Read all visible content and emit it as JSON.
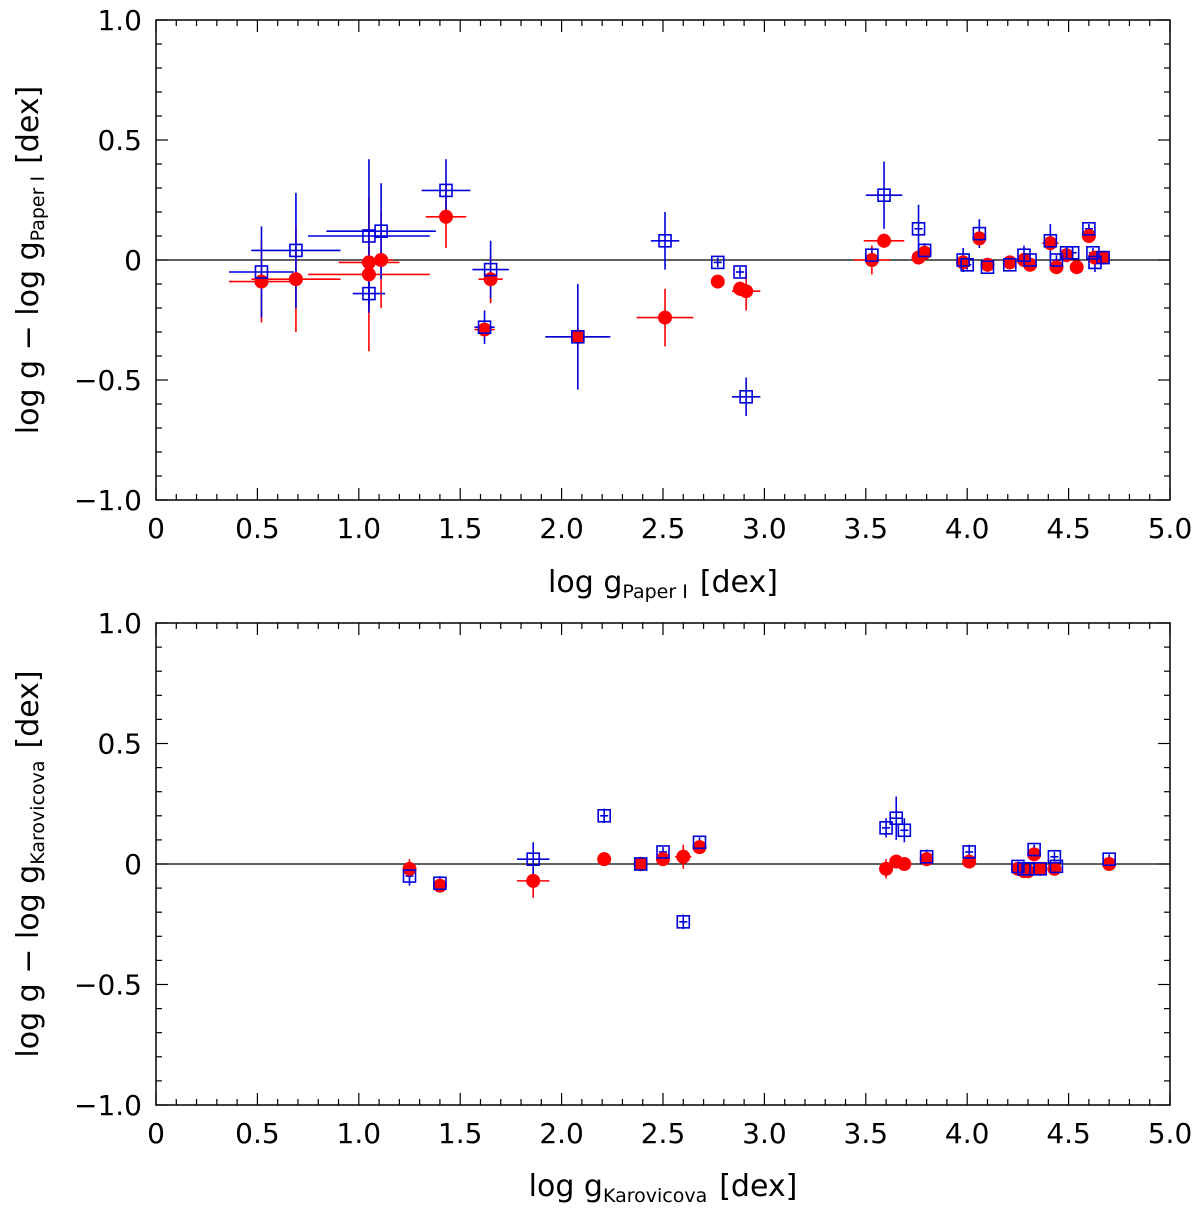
{
  "chart_data": [
    {
      "type": "scatter",
      "panel": "top",
      "xlabel_main": "log g",
      "xlabel_sub": "Paper I",
      "xlabel_unit": "[dex]",
      "ylabel_main": "log g − log g",
      "ylabel_sub": "Paper I",
      "ylabel_unit": "[dex]",
      "xlim": [
        0,
        5.0
      ],
      "ylim": [
        -1.0,
        1.0
      ],
      "xticks": [
        "0",
        "0.5",
        "1.0",
        "1.5",
        "2.0",
        "2.5",
        "3.0",
        "3.5",
        "4.0",
        "4.5",
        "5.0"
      ],
      "xtick_values": [
        0,
        0.5,
        1.0,
        1.5,
        2.0,
        2.5,
        3.0,
        3.5,
        4.0,
        4.5,
        5.0
      ],
      "yticks": [
        "1.0",
        "0.5",
        "0",
        "−0.5",
        "−1.0"
      ],
      "ytick_values": [
        1.0,
        0.5,
        0,
        -0.5,
        -1.0
      ],
      "reference_line": 0,
      "series": [
        {
          "name": "filled circles",
          "color": "#ff0000",
          "marker": "circle-filled",
          "points": [
            {
              "x": 0.52,
              "y": -0.09,
              "xerr": 0.16,
              "yerr": 0.17
            },
            {
              "x": 0.69,
              "y": -0.08,
              "xerr": 0.22,
              "yerr": 0.22
            },
            {
              "x": 1.05,
              "y": -0.01,
              "xerr": 0.15,
              "yerr": 0.06
            },
            {
              "x": 1.05,
              "y": -0.06,
              "xerr": 0.3,
              "yerr": 0.32
            },
            {
              "x": 1.11,
              "y": 0.0,
              "xerr": 0.06,
              "yerr": 0.2
            },
            {
              "x": 1.43,
              "y": 0.18,
              "xerr": 0.1,
              "yerr": 0.13
            },
            {
              "x": 1.62,
              "y": -0.29,
              "xerr": 0.05,
              "yerr": 0.03
            },
            {
              "x": 1.65,
              "y": -0.08,
              "xerr": 0.06,
              "yerr": 0.1
            },
            {
              "x": 2.08,
              "y": -0.32,
              "xerr": 0.16,
              "yerr": 0.04
            },
            {
              "x": 2.51,
              "y": -0.24,
              "xerr": 0.14,
              "yerr": 0.12
            },
            {
              "x": 2.77,
              "y": -0.09,
              "xerr": 0.02,
              "yerr": 0.02
            },
            {
              "x": 2.88,
              "y": -0.12,
              "xerr": 0.03,
              "yerr": 0.03
            },
            {
              "x": 2.91,
              "y": -0.13,
              "xerr": 0.07,
              "yerr": 0.08
            },
            {
              "x": 3.53,
              "y": 0.0,
              "xerr": 0.09,
              "yerr": 0.06
            },
            {
              "x": 3.59,
              "y": 0.08,
              "xerr": 0.1,
              "yerr": 0.03
            },
            {
              "x": 3.76,
              "y": 0.01,
              "xerr": 0.03,
              "yerr": 0.02
            },
            {
              "x": 3.79,
              "y": 0.03,
              "xerr": 0.02,
              "yerr": 0.02
            },
            {
              "x": 3.98,
              "y": -0.01,
              "xerr": 0.03,
              "yerr": 0.02
            },
            {
              "x": 4.06,
              "y": 0.09,
              "xerr": 0.03,
              "yerr": 0.03
            },
            {
              "x": 4.1,
              "y": -0.02,
              "xerr": 0.02,
              "yerr": 0.02
            },
            {
              "x": 4.21,
              "y": -0.01,
              "xerr": 0.02,
              "yerr": 0.02
            },
            {
              "x": 4.28,
              "y": 0.0,
              "xerr": 0.03,
              "yerr": 0.02
            },
            {
              "x": 4.31,
              "y": -0.02,
              "xerr": 0.02,
              "yerr": 0.02
            },
            {
              "x": 4.41,
              "y": 0.07,
              "xerr": 0.04,
              "yerr": 0.03
            },
            {
              "x": 4.44,
              "y": -0.03,
              "xerr": 0.02,
              "yerr": 0.02
            },
            {
              "x": 4.49,
              "y": 0.02,
              "xerr": 0.02,
              "yerr": 0.02
            },
            {
              "x": 4.54,
              "y": -0.03,
              "xerr": 0.02,
              "yerr": 0.02
            },
            {
              "x": 4.6,
              "y": 0.1,
              "xerr": 0.02,
              "yerr": 0.02
            },
            {
              "x": 4.63,
              "y": 0.01,
              "xerr": 0.02,
              "yerr": 0.02
            },
            {
              "x": 4.67,
              "y": 0.01,
              "xerr": 0.02,
              "yerr": 0.02
            }
          ]
        },
        {
          "name": "open squares",
          "color": "#0000dd",
          "marker": "square-open",
          "points": [
            {
              "x": 0.52,
              "y": -0.05,
              "xerr": 0.16,
              "yerr": 0.19
            },
            {
              "x": 0.69,
              "y": 0.04,
              "xerr": 0.22,
              "yerr": 0.24
            },
            {
              "x": 1.05,
              "y": 0.1,
              "xerr": 0.3,
              "yerr": 0.32
            },
            {
              "x": 1.05,
              "y": -0.14,
              "xerr": 0.08,
              "yerr": 0.05
            },
            {
              "x": 1.11,
              "y": 0.12,
              "xerr": 0.27,
              "yerr": 0.2
            },
            {
              "x": 1.43,
              "y": 0.29,
              "xerr": 0.12,
              "yerr": 0.13
            },
            {
              "x": 1.62,
              "y": -0.28,
              "xerr": 0.05,
              "yerr": 0.07
            },
            {
              "x": 1.65,
              "y": -0.04,
              "xerr": 0.09,
              "yerr": 0.12
            },
            {
              "x": 2.08,
              "y": -0.32,
              "xerr": 0.16,
              "yerr": 0.22
            },
            {
              "x": 2.51,
              "y": 0.08,
              "xerr": 0.07,
              "yerr": 0.12
            },
            {
              "x": 2.77,
              "y": -0.01,
              "xerr": 0.02,
              "yerr": 0.02
            },
            {
              "x": 2.88,
              "y": -0.05,
              "xerr": 0.02,
              "yerr": 0.02
            },
            {
              "x": 2.91,
              "y": -0.57,
              "xerr": 0.07,
              "yerr": 0.08
            },
            {
              "x": 3.53,
              "y": 0.02,
              "xerr": 0.02,
              "yerr": 0.02
            },
            {
              "x": 3.59,
              "y": 0.27,
              "xerr": 0.09,
              "yerr": 0.14
            },
            {
              "x": 3.76,
              "y": 0.13,
              "xerr": 0.02,
              "yerr": 0.1
            },
            {
              "x": 3.79,
              "y": 0.04,
              "xerr": 0.02,
              "yerr": 0.03
            },
            {
              "x": 3.98,
              "y": 0.0,
              "xerr": 0.02,
              "yerr": 0.05
            },
            {
              "x": 4.0,
              "y": -0.02,
              "xerr": 0.02,
              "yerr": 0.02
            },
            {
              "x": 4.06,
              "y": 0.11,
              "xerr": 0.02,
              "yerr": 0.06
            },
            {
              "x": 4.1,
              "y": -0.03,
              "xerr": 0.02,
              "yerr": 0.02
            },
            {
              "x": 4.21,
              "y": -0.02,
              "xerr": 0.02,
              "yerr": 0.02
            },
            {
              "x": 4.28,
              "y": 0.02,
              "xerr": 0.02,
              "yerr": 0.04
            },
            {
              "x": 4.31,
              "y": 0.0,
              "xerr": 0.02,
              "yerr": 0.02
            },
            {
              "x": 4.41,
              "y": 0.08,
              "xerr": 0.02,
              "yerr": 0.07
            },
            {
              "x": 4.44,
              "y": 0.0,
              "xerr": 0.02,
              "yerr": 0.02
            },
            {
              "x": 4.49,
              "y": 0.03,
              "xerr": 0.02,
              "yerr": 0.02
            },
            {
              "x": 4.52,
              "y": 0.03,
              "xerr": 0.02,
              "yerr": 0.02
            },
            {
              "x": 4.6,
              "y": 0.13,
              "xerr": 0.02,
              "yerr": 0.02
            },
            {
              "x": 4.62,
              "y": 0.03,
              "xerr": 0.02,
              "yerr": 0.02
            },
            {
              "x": 4.63,
              "y": -0.01,
              "xerr": 0.02,
              "yerr": 0.04
            },
            {
              "x": 4.67,
              "y": 0.01,
              "xerr": 0.02,
              "yerr": 0.02
            }
          ]
        }
      ]
    },
    {
      "type": "scatter",
      "panel": "bottom",
      "xlabel_main": "log g",
      "xlabel_sub": "Karovicova",
      "xlabel_unit": "[dex]",
      "ylabel_main": "log g − log g",
      "ylabel_sub": "Karovicova",
      "ylabel_unit": "[dex]",
      "xlim": [
        0,
        5.0
      ],
      "ylim": [
        -1.0,
        1.0
      ],
      "xticks": [
        "0",
        "0.5",
        "1.0",
        "1.5",
        "2.0",
        "2.5",
        "3.0",
        "3.5",
        "4.0",
        "4.5",
        "5.0"
      ],
      "xtick_values": [
        0,
        0.5,
        1.0,
        1.5,
        2.0,
        2.5,
        3.0,
        3.5,
        4.0,
        4.5,
        5.0
      ],
      "yticks": [
        "1.0",
        "0.5",
        "0",
        "−0.5",
        "−1.0"
      ],
      "ytick_values": [
        1.0,
        0.5,
        0,
        -0.5,
        -1.0
      ],
      "reference_line": 0,
      "series": [
        {
          "name": "filled circles",
          "color": "#ff0000",
          "marker": "circle-filled",
          "points": [
            {
              "x": 1.25,
              "y": -0.02,
              "xerr": 0.02,
              "yerr": 0.04
            },
            {
              "x": 1.4,
              "y": -0.09,
              "xerr": 0.02,
              "yerr": 0.02
            },
            {
              "x": 1.86,
              "y": -0.07,
              "xerr": 0.08,
              "yerr": 0.07
            },
            {
              "x": 2.21,
              "y": 0.02,
              "xerr": 0.02,
              "yerr": 0.02
            },
            {
              "x": 2.39,
              "y": 0.0,
              "xerr": 0.02,
              "yerr": 0.03
            },
            {
              "x": 2.5,
              "y": 0.02,
              "xerr": 0.02,
              "yerr": 0.02
            },
            {
              "x": 2.6,
              "y": 0.03,
              "xerr": 0.04,
              "yerr": 0.05
            },
            {
              "x": 2.68,
              "y": 0.07,
              "xerr": 0.02,
              "yerr": 0.02
            },
            {
              "x": 3.6,
              "y": -0.02,
              "xerr": 0.03,
              "yerr": 0.04
            },
            {
              "x": 3.65,
              "y": 0.01,
              "xerr": 0.02,
              "yerr": 0.02
            },
            {
              "x": 3.69,
              "y": 0.0,
              "xerr": 0.02,
              "yerr": 0.02
            },
            {
              "x": 3.8,
              "y": 0.02,
              "xerr": 0.02,
              "yerr": 0.02
            },
            {
              "x": 4.01,
              "y": 0.01,
              "xerr": 0.02,
              "yerr": 0.02
            },
            {
              "x": 4.25,
              "y": -0.02,
              "xerr": 0.02,
              "yerr": 0.02
            },
            {
              "x": 4.28,
              "y": -0.03,
              "xerr": 0.02,
              "yerr": 0.02
            },
            {
              "x": 4.3,
              "y": -0.03,
              "xerr": 0.02,
              "yerr": 0.02
            },
            {
              "x": 4.33,
              "y": 0.04,
              "xerr": 0.02,
              "yerr": 0.02
            },
            {
              "x": 4.36,
              "y": -0.02,
              "xerr": 0.02,
              "yerr": 0.02
            },
            {
              "x": 4.43,
              "y": -0.02,
              "xerr": 0.02,
              "yerr": 0.02
            },
            {
              "x": 4.7,
              "y": 0.0,
              "xerr": 0.02,
              "yerr": 0.02
            }
          ]
        },
        {
          "name": "open squares",
          "color": "#0000dd",
          "marker": "square-open",
          "points": [
            {
              "x": 1.25,
              "y": -0.05,
              "xerr": 0.02,
              "yerr": 0.04
            },
            {
              "x": 1.4,
              "y": -0.08,
              "xerr": 0.02,
              "yerr": 0.03
            },
            {
              "x": 1.86,
              "y": 0.02,
              "xerr": 0.08,
              "yerr": 0.07
            },
            {
              "x": 2.21,
              "y": 0.2,
              "xerr": 0.02,
              "yerr": 0.03
            },
            {
              "x": 2.39,
              "y": 0.0,
              "xerr": 0.02,
              "yerr": 0.02
            },
            {
              "x": 2.5,
              "y": 0.05,
              "xerr": 0.02,
              "yerr": 0.02
            },
            {
              "x": 2.6,
              "y": -0.24,
              "xerr": 0.02,
              "yerr": 0.03
            },
            {
              "x": 2.68,
              "y": 0.09,
              "xerr": 0.02,
              "yerr": 0.02
            },
            {
              "x": 3.6,
              "y": 0.15,
              "xerr": 0.02,
              "yerr": 0.04
            },
            {
              "x": 3.65,
              "y": 0.19,
              "xerr": 0.03,
              "yerr": 0.09
            },
            {
              "x": 3.69,
              "y": 0.14,
              "xerr": 0.02,
              "yerr": 0.05
            },
            {
              "x": 3.8,
              "y": 0.03,
              "xerr": 0.02,
              "yerr": 0.03
            },
            {
              "x": 4.01,
              "y": 0.05,
              "xerr": 0.02,
              "yerr": 0.03
            },
            {
              "x": 4.25,
              "y": -0.01,
              "xerr": 0.02,
              "yerr": 0.02
            },
            {
              "x": 4.28,
              "y": -0.02,
              "xerr": 0.02,
              "yerr": 0.02
            },
            {
              "x": 4.3,
              "y": -0.02,
              "xerr": 0.02,
              "yerr": 0.02
            },
            {
              "x": 4.33,
              "y": 0.06,
              "xerr": 0.02,
              "yerr": 0.02
            },
            {
              "x": 4.36,
              "y": -0.02,
              "xerr": 0.02,
              "yerr": 0.02
            },
            {
              "x": 4.43,
              "y": 0.03,
              "xerr": 0.02,
              "yerr": 0.02
            },
            {
              "x": 4.44,
              "y": -0.01,
              "xerr": 0.02,
              "yerr": 0.02
            },
            {
              "x": 4.7,
              "y": 0.02,
              "xerr": 0.02,
              "yerr": 0.02
            }
          ]
        }
      ]
    }
  ]
}
